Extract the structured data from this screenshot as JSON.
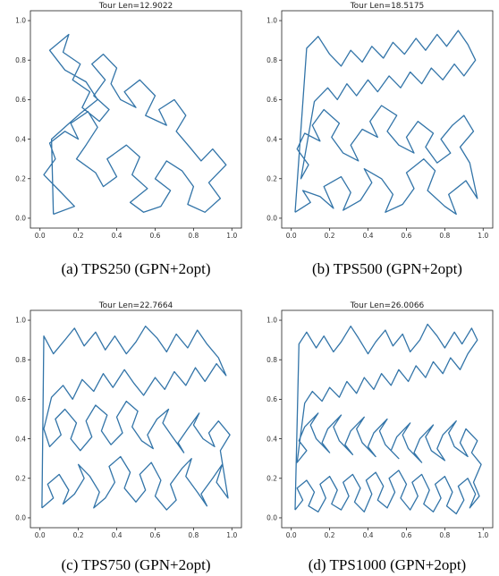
{
  "figure": {
    "line_color": "#3274a8",
    "panels": [
      {
        "caption": "(a)  TPS250 (GPN+2opt)",
        "title": "Tour Len=12.9022"
      },
      {
        "caption": "(b)  TPS500 (GPN+2opt)",
        "title": "Tour Len=18.5175"
      },
      {
        "caption": "(c)  TPS750 (GPN+2opt)",
        "title": "Tour Len=22.7664"
      },
      {
        "caption": "(d)  TPS1000 (GPN+2opt)",
        "title": "Tour Len=26.0066"
      }
    ]
  },
  "chart_data": [
    {
      "type": "line",
      "title": "Tour Len=12.9022",
      "xlabel": "",
      "ylabel": "",
      "xlim": [
        -0.05,
        1.05
      ],
      "ylim": [
        -0.05,
        1.05
      ],
      "xticks": [
        "0.0",
        "0.2",
        "0.4",
        "0.6",
        "0.8",
        "1.0"
      ],
      "yticks": [
        "0.0",
        "0.2",
        "0.4",
        "0.6",
        "0.8",
        "1.0"
      ],
      "grid": false,
      "series": [
        {
          "x": [
            0.07,
            0.18,
            0.1,
            0.02,
            0.08,
            0.05,
            0.13,
            0.2,
            0.16,
            0.25,
            0.3,
            0.24,
            0.19,
            0.29,
            0.33,
            0.4,
            0.35,
            0.45,
            0.52,
            0.48,
            0.56,
            0.47,
            0.54,
            0.63,
            0.68,
            0.6,
            0.66,
            0.74,
            0.8,
            0.77,
            0.86,
            0.94,
            0.88,
            0.97,
            0.9,
            0.84,
            0.78,
            0.71,
            0.76,
            0.7,
            0.62,
            0.66,
            0.55,
            0.6,
            0.52,
            0.44,
            0.5,
            0.42,
            0.37,
            0.4,
            0.33,
            0.27,
            0.34,
            0.28,
            0.36,
            0.31,
            0.22,
            0.26,
            0.17,
            0.21,
            0.12,
            0.15,
            0.05,
            0.13,
            0.24,
            0.3,
            0.21,
            0.14,
            0.06,
            0.07
          ],
          "y": [
            0.02,
            0.06,
            0.14,
            0.22,
            0.3,
            0.38,
            0.44,
            0.4,
            0.48,
            0.54,
            0.46,
            0.37,
            0.3,
            0.23,
            0.16,
            0.21,
            0.3,
            0.37,
            0.31,
            0.22,
            0.15,
            0.08,
            0.03,
            0.06,
            0.14,
            0.2,
            0.29,
            0.24,
            0.16,
            0.07,
            0.03,
            0.1,
            0.18,
            0.27,
            0.35,
            0.29,
            0.36,
            0.44,
            0.52,
            0.6,
            0.55,
            0.47,
            0.52,
            0.62,
            0.7,
            0.64,
            0.56,
            0.6,
            0.68,
            0.76,
            0.83,
            0.78,
            0.7,
            0.62,
            0.55,
            0.49,
            0.56,
            0.64,
            0.7,
            0.78,
            0.84,
            0.93,
            0.85,
            0.75,
            0.69,
            0.6,
            0.53,
            0.47,
            0.4,
            0.02
          ]
        }
      ]
    },
    {
      "type": "line",
      "title": "Tour Len=18.5175",
      "xlabel": "",
      "ylabel": "",
      "xlim": [
        -0.05,
        1.05
      ],
      "ylim": [
        -0.05,
        1.05
      ],
      "xticks": [
        "0.0",
        "0.2",
        "0.4",
        "0.6",
        "0.8",
        "1.0"
      ],
      "yticks": [
        "0.0",
        "0.2",
        "0.4",
        "0.6",
        "0.8",
        "1.0"
      ],
      "grid": false,
      "series": [
        {
          "x": [
            0.02,
            0.1,
            0.06,
            0.15,
            0.22,
            0.17,
            0.26,
            0.31,
            0.27,
            0.36,
            0.42,
            0.38,
            0.47,
            0.53,
            0.49,
            0.58,
            0.64,
            0.6,
            0.69,
            0.75,
            0.71,
            0.8,
            0.86,
            0.82,
            0.91,
            0.97,
            0.93,
            0.88,
            0.95,
            0.9,
            0.84,
            0.78,
            0.83,
            0.76,
            0.7,
            0.74,
            0.66,
            0.6,
            0.64,
            0.56,
            0.5,
            0.55,
            0.47,
            0.41,
            0.45,
            0.37,
            0.31,
            0.35,
            0.27,
            0.21,
            0.25,
            0.17,
            0.11,
            0.15,
            0.07,
            0.03,
            0.09,
            0.05,
            0.12,
            0.19,
            0.24,
            0.29,
            0.34,
            0.4,
            0.45,
            0.51,
            0.57,
            0.62,
            0.68,
            0.73,
            0.79,
            0.85,
            0.9,
            0.96,
            0.92,
            0.87,
            0.81,
            0.76,
            0.7,
            0.65,
            0.59,
            0.53,
            0.48,
            0.42,
            0.37,
            0.31,
            0.26,
            0.2,
            0.14,
            0.08,
            0.02
          ],
          "y": [
            0.03,
            0.08,
            0.14,
            0.11,
            0.05,
            0.16,
            0.21,
            0.13,
            0.04,
            0.09,
            0.18,
            0.25,
            0.2,
            0.12,
            0.03,
            0.07,
            0.15,
            0.23,
            0.3,
            0.24,
            0.14,
            0.06,
            0.02,
            0.12,
            0.19,
            0.1,
            0.28,
            0.36,
            0.44,
            0.52,
            0.47,
            0.4,
            0.33,
            0.28,
            0.36,
            0.43,
            0.49,
            0.41,
            0.33,
            0.37,
            0.44,
            0.52,
            0.57,
            0.49,
            0.41,
            0.45,
            0.37,
            0.29,
            0.33,
            0.41,
            0.48,
            0.55,
            0.47,
            0.39,
            0.43,
            0.35,
            0.27,
            0.2,
            0.59,
            0.66,
            0.6,
            0.68,
            0.62,
            0.7,
            0.64,
            0.72,
            0.66,
            0.74,
            0.68,
            0.76,
            0.7,
            0.78,
            0.72,
            0.8,
            0.88,
            0.95,
            0.87,
            0.93,
            0.85,
            0.91,
            0.83,
            0.89,
            0.81,
            0.87,
            0.79,
            0.85,
            0.77,
            0.83,
            0.92,
            0.86,
            0.03
          ]
        }
      ]
    },
    {
      "type": "line",
      "title": "Tour Len=22.7664",
      "xlabel": "",
      "ylabel": "",
      "xlim": [
        -0.05,
        1.05
      ],
      "ylim": [
        -0.05,
        1.05
      ],
      "xticks": [
        "0.0",
        "0.2",
        "0.4",
        "0.6",
        "0.8",
        "1.0"
      ],
      "yticks": [
        "0.0",
        "0.2",
        "0.4",
        "0.6",
        "0.8",
        "1.0"
      ],
      "grid": false,
      "series": [
        {
          "x": [
            0.01,
            0.07,
            0.04,
            0.1,
            0.15,
            0.12,
            0.18,
            0.23,
            0.2,
            0.26,
            0.31,
            0.28,
            0.34,
            0.39,
            0.36,
            0.42,
            0.47,
            0.44,
            0.5,
            0.55,
            0.52,
            0.58,
            0.63,
            0.6,
            0.66,
            0.71,
            0.68,
            0.74,
            0.79,
            0.76,
            0.82,
            0.87,
            0.84,
            0.9,
            0.95,
            0.92,
            0.98,
            0.94,
            0.99,
            0.93,
            0.88,
            0.91,
            0.85,
            0.8,
            0.83,
            0.77,
            0.72,
            0.75,
            0.69,
            0.64,
            0.67,
            0.61,
            0.56,
            0.59,
            0.53,
            0.48,
            0.51,
            0.45,
            0.4,
            0.43,
            0.37,
            0.32,
            0.35,
            0.29,
            0.24,
            0.27,
            0.21,
            0.16,
            0.19,
            0.13,
            0.08,
            0.11,
            0.05,
            0.02,
            0.06,
            0.12,
            0.17,
            0.22,
            0.28,
            0.33,
            0.38,
            0.44,
            0.49,
            0.54,
            0.6,
            0.65,
            0.7,
            0.76,
            0.81,
            0.86,
            0.92,
            0.97,
            0.93,
            0.87,
            0.82,
            0.77,
            0.71,
            0.66,
            0.61,
            0.55,
            0.5,
            0.45,
            0.39,
            0.34,
            0.29,
            0.23,
            0.18,
            0.13,
            0.07,
            0.02,
            0.01
          ],
          "y": [
            0.05,
            0.1,
            0.17,
            0.22,
            0.14,
            0.07,
            0.12,
            0.2,
            0.27,
            0.21,
            0.13,
            0.05,
            0.1,
            0.18,
            0.26,
            0.31,
            0.23,
            0.15,
            0.08,
            0.14,
            0.22,
            0.28,
            0.19,
            0.11,
            0.04,
            0.09,
            0.17,
            0.25,
            0.3,
            0.21,
            0.13,
            0.06,
            0.12,
            0.2,
            0.27,
            0.18,
            0.1,
            0.34,
            0.42,
            0.49,
            0.43,
            0.36,
            0.4,
            0.47,
            0.53,
            0.45,
            0.38,
            0.33,
            0.41,
            0.48,
            0.55,
            0.5,
            0.42,
            0.35,
            0.39,
            0.46,
            0.54,
            0.59,
            0.51,
            0.43,
            0.37,
            0.44,
            0.52,
            0.57,
            0.49,
            0.41,
            0.34,
            0.4,
            0.48,
            0.55,
            0.5,
            0.42,
            0.36,
            0.45,
            0.61,
            0.67,
            0.6,
            0.7,
            0.64,
            0.73,
            0.66,
            0.75,
            0.68,
            0.62,
            0.71,
            0.65,
            0.74,
            0.67,
            0.76,
            0.69,
            0.78,
            0.72,
            0.81,
            0.88,
            0.95,
            0.86,
            0.93,
            0.84,
            0.91,
            0.97,
            0.89,
            0.83,
            0.92,
            0.85,
            0.94,
            0.87,
            0.96,
            0.9,
            0.83,
            0.92,
            0.05
          ]
        }
      ]
    },
    {
      "type": "line",
      "title": "Tour Len=26.0066",
      "xlabel": "",
      "ylabel": "",
      "xlim": [
        -0.05,
        1.05
      ],
      "ylim": [
        -0.05,
        1.05
      ],
      "xticks": [
        "0.0",
        "0.2",
        "0.4",
        "0.6",
        "0.8",
        "1.0"
      ],
      "yticks": [
        "0.0",
        "0.2",
        "0.4",
        "0.6",
        "0.8",
        "1.0"
      ],
      "grid": false,
      "series": [
        {
          "x": [
            0.02,
            0.06,
            0.03,
            0.08,
            0.12,
            0.09,
            0.14,
            0.18,
            0.15,
            0.2,
            0.24,
            0.21,
            0.26,
            0.3,
            0.27,
            0.32,
            0.36,
            0.33,
            0.38,
            0.42,
            0.39,
            0.44,
            0.48,
            0.45,
            0.5,
            0.54,
            0.51,
            0.56,
            0.6,
            0.57,
            0.62,
            0.66,
            0.63,
            0.68,
            0.72,
            0.69,
            0.74,
            0.78,
            0.75,
            0.8,
            0.84,
            0.81,
            0.86,
            0.9,
            0.87,
            0.92,
            0.96,
            0.93,
            0.98,
            0.95,
            0.99,
            0.94,
            0.97,
            0.91,
            0.88,
            0.92,
            0.85,
            0.82,
            0.86,
            0.79,
            0.76,
            0.8,
            0.73,
            0.7,
            0.74,
            0.67,
            0.64,
            0.68,
            0.61,
            0.58,
            0.62,
            0.55,
            0.52,
            0.56,
            0.49,
            0.46,
            0.5,
            0.43,
            0.4,
            0.44,
            0.37,
            0.34,
            0.38,
            0.31,
            0.28,
            0.32,
            0.25,
            0.22,
            0.26,
            0.19,
            0.16,
            0.2,
            0.13,
            0.1,
            0.14,
            0.07,
            0.04,
            0.08,
            0.03,
            0.07,
            0.11,
            0.16,
            0.2,
            0.25,
            0.29,
            0.34,
            0.38,
            0.43,
            0.47,
            0.52,
            0.56,
            0.61,
            0.65,
            0.7,
            0.74,
            0.79,
            0.83,
            0.88,
            0.92,
            0.97,
            0.94,
            0.89,
            0.85,
            0.8,
            0.76,
            0.71,
            0.67,
            0.62,
            0.58,
            0.53,
            0.49,
            0.44,
            0.4,
            0.35,
            0.31,
            0.26,
            0.22,
            0.17,
            0.13,
            0.08,
            0.04,
            0.02
          ],
          "y": [
            0.04,
            0.09,
            0.15,
            0.19,
            0.13,
            0.06,
            0.03,
            0.1,
            0.17,
            0.21,
            0.14,
            0.07,
            0.04,
            0.11,
            0.18,
            0.22,
            0.15,
            0.08,
            0.03,
            0.12,
            0.19,
            0.23,
            0.16,
            0.09,
            0.05,
            0.13,
            0.2,
            0.24,
            0.17,
            0.1,
            0.04,
            0.11,
            0.18,
            0.22,
            0.14,
            0.07,
            0.03,
            0.1,
            0.17,
            0.21,
            0.13,
            0.06,
            0.02,
            0.09,
            0.16,
            0.2,
            0.12,
            0.05,
            0.11,
            0.18,
            0.27,
            0.33,
            0.39,
            0.45,
            0.38,
            0.31,
            0.36,
            0.43,
            0.49,
            0.42,
            0.35,
            0.29,
            0.34,
            0.41,
            0.47,
            0.4,
            0.33,
            0.28,
            0.35,
            0.42,
            0.48,
            0.41,
            0.34,
            0.3,
            0.37,
            0.44,
            0.5,
            0.43,
            0.36,
            0.31,
            0.38,
            0.45,
            0.51,
            0.44,
            0.37,
            0.32,
            0.39,
            0.46,
            0.52,
            0.45,
            0.38,
            0.33,
            0.4,
            0.47,
            0.53,
            0.46,
            0.39,
            0.34,
            0.28,
            0.58,
            0.64,
            0.59,
            0.66,
            0.61,
            0.69,
            0.63,
            0.71,
            0.65,
            0.73,
            0.67,
            0.75,
            0.69,
            0.77,
            0.71,
            0.79,
            0.73,
            0.81,
            0.75,
            0.83,
            0.9,
            0.96,
            0.88,
            0.94,
            0.86,
            0.92,
            0.98,
            0.9,
            0.84,
            0.93,
            0.87,
            0.95,
            0.89,
            0.83,
            0.91,
            0.97,
            0.89,
            0.84,
            0.92,
            0.86,
            0.94,
            0.88,
            0.04
          ]
        }
      ]
    }
  ]
}
